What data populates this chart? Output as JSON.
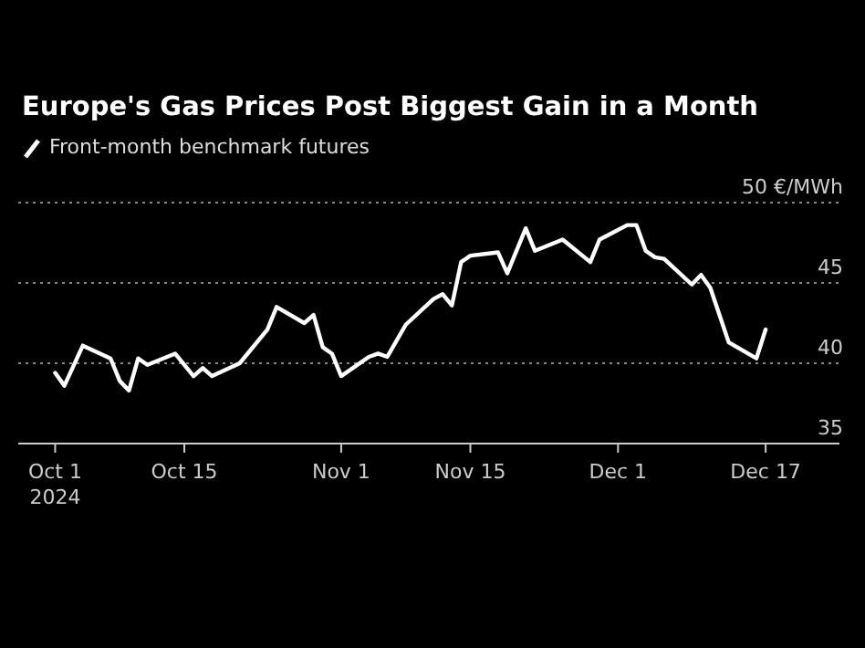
{
  "chart_data": {
    "type": "line",
    "title": "Europe's Gas Prices Post Biggest Gain in a Month",
    "x": [
      "2024-10-01",
      "2024-10-02",
      "2024-10-04",
      "2024-10-07",
      "2024-10-08",
      "2024-10-09",
      "2024-10-10",
      "2024-10-11",
      "2024-10-14",
      "2024-10-16",
      "2024-10-17",
      "2024-10-18",
      "2024-10-21",
      "2024-10-24",
      "2024-10-25",
      "2024-10-28",
      "2024-10-29",
      "2024-10-30",
      "2024-10-31",
      "2024-11-01",
      "2024-11-04",
      "2024-11-05",
      "2024-11-06",
      "2024-11-08",
      "2024-11-11",
      "2024-11-12",
      "2024-11-13",
      "2024-11-14",
      "2024-11-15",
      "2024-11-18",
      "2024-11-19",
      "2024-11-21",
      "2024-11-22",
      "2024-11-25",
      "2024-11-28",
      "2024-11-29",
      "2024-12-02",
      "2024-12-03",
      "2024-12-04",
      "2024-12-05",
      "2024-12-06",
      "2024-12-09",
      "2024-12-10",
      "2024-12-11",
      "2024-12-13",
      "2024-12-16",
      "2024-12-17"
    ],
    "series": [
      {
        "name": "Front-month benchmark futures",
        "color": "#ffffff",
        "values": [
          39.4,
          38.6,
          41.1,
          40.3,
          38.9,
          38.3,
          40.3,
          39.9,
          40.6,
          39.2,
          39.7,
          39.2,
          40.0,
          42.1,
          43.5,
          42.5,
          43.0,
          41.0,
          40.6,
          39.2,
          40.4,
          40.6,
          40.4,
          42.4,
          44.0,
          44.3,
          43.6,
          46.3,
          46.7,
          46.9,
          45.6,
          48.4,
          47.0,
          47.7,
          46.3,
          47.7,
          48.6,
          48.6,
          47.0,
          46.6,
          46.5,
          44.9,
          45.5,
          44.7,
          41.3,
          40.3,
          42.1
        ]
      }
    ],
    "xlim": [
      "2024-09-27",
      "2024-12-25"
    ],
    "xticks": [
      {
        "value": "2024-10-01",
        "label": "Oct 1\n2024"
      },
      {
        "value": "2024-10-15",
        "label": "Oct 15"
      },
      {
        "value": "2024-11-01",
        "label": "Nov 1"
      },
      {
        "value": "2024-11-15",
        "label": "Nov 15"
      },
      {
        "value": "2024-12-01",
        "label": "Dec 1"
      },
      {
        "value": "2024-12-17",
        "label": "Dec 17"
      }
    ],
    "ylim": [
      35,
      50
    ],
    "yticks": [
      35,
      40,
      45,
      {
        "value": 50,
        "label": "50 €/MWh"
      }
    ],
    "grid": "y",
    "legend": "top left",
    "marker": "none",
    "line_style": "solid"
  }
}
